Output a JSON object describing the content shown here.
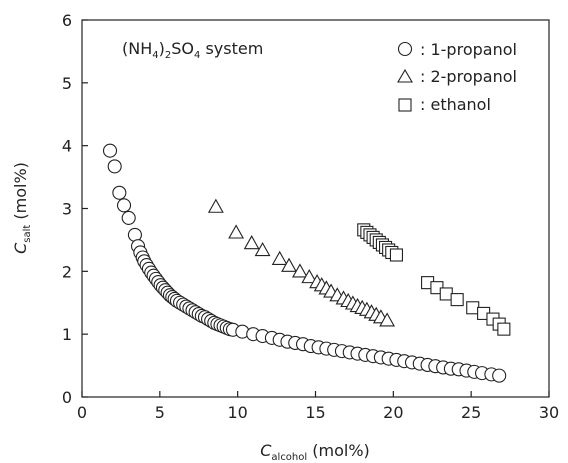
{
  "chart_data": {
    "type": "scatter",
    "annotation": {
      "main": "(NH",
      "sub1": "4",
      "mid": ")",
      "sub2": "2",
      "mid2": "SO",
      "sub3": "4",
      "end": " system"
    },
    "xlabel": {
      "main": "C",
      "sub": "alcohol",
      "unit": " (mol%)"
    },
    "ylabel": {
      "main": "C",
      "sub": "salt",
      "unit": " (mol%)"
    },
    "xlim": [
      0,
      30
    ],
    "ylim": [
      0,
      6
    ],
    "xticks": [
      "0",
      "5",
      "10",
      "15",
      "20",
      "25",
      "30"
    ],
    "yticks": [
      "0",
      "1",
      "2",
      "3",
      "4",
      "5",
      "6"
    ],
    "legend_position": "top-right",
    "series": [
      {
        "name": ": 1-propanol",
        "marker": "circle",
        "points": [
          [
            1.8,
            3.92
          ],
          [
            2.1,
            3.67
          ],
          [
            2.4,
            3.25
          ],
          [
            2.7,
            3.05
          ],
          [
            3.0,
            2.85
          ],
          [
            3.4,
            2.58
          ],
          [
            3.6,
            2.4
          ],
          [
            3.75,
            2.3
          ],
          [
            3.9,
            2.22
          ],
          [
            4.0,
            2.16
          ],
          [
            4.15,
            2.1
          ],
          [
            4.3,
            2.04
          ],
          [
            4.45,
            1.98
          ],
          [
            4.6,
            1.93
          ],
          [
            4.75,
            1.88
          ],
          [
            4.9,
            1.83
          ],
          [
            5.05,
            1.78
          ],
          [
            5.2,
            1.74
          ],
          [
            5.35,
            1.7
          ],
          [
            5.5,
            1.66
          ],
          [
            5.65,
            1.62
          ],
          [
            5.8,
            1.59
          ],
          [
            5.95,
            1.56
          ],
          [
            6.1,
            1.53
          ],
          [
            6.3,
            1.5
          ],
          [
            6.5,
            1.47
          ],
          [
            6.7,
            1.44
          ],
          [
            6.9,
            1.41
          ],
          [
            7.1,
            1.38
          ],
          [
            7.3,
            1.35
          ],
          [
            7.5,
            1.32
          ],
          [
            7.7,
            1.29
          ],
          [
            7.9,
            1.27
          ],
          [
            8.1,
            1.24
          ],
          [
            8.3,
            1.21
          ],
          [
            8.5,
            1.18
          ],
          [
            8.7,
            1.16
          ],
          [
            8.9,
            1.14
          ],
          [
            9.1,
            1.12
          ],
          [
            9.3,
            1.1
          ],
          [
            9.5,
            1.08
          ],
          [
            9.7,
            1.07
          ],
          [
            10.3,
            1.04
          ],
          [
            11.0,
            1.0
          ],
          [
            11.6,
            0.97
          ],
          [
            12.2,
            0.94
          ],
          [
            12.7,
            0.91
          ],
          [
            13.2,
            0.88
          ],
          [
            13.7,
            0.86
          ],
          [
            14.2,
            0.84
          ],
          [
            14.7,
            0.81
          ],
          [
            15.2,
            0.79
          ],
          [
            15.7,
            0.77
          ],
          [
            16.2,
            0.75
          ],
          [
            16.7,
            0.73
          ],
          [
            17.2,
            0.71
          ],
          [
            17.7,
            0.69
          ],
          [
            18.2,
            0.67
          ],
          [
            18.7,
            0.65
          ],
          [
            19.2,
            0.63
          ],
          [
            19.7,
            0.61
          ],
          [
            20.2,
            0.59
          ],
          [
            20.7,
            0.57
          ],
          [
            21.2,
            0.55
          ],
          [
            21.7,
            0.53
          ],
          [
            22.2,
            0.51
          ],
          [
            22.7,
            0.49
          ],
          [
            23.2,
            0.47
          ],
          [
            23.7,
            0.45
          ],
          [
            24.2,
            0.44
          ],
          [
            24.7,
            0.42
          ],
          [
            25.2,
            0.4
          ],
          [
            25.7,
            0.38
          ],
          [
            26.3,
            0.36
          ],
          [
            26.8,
            0.34
          ]
        ]
      },
      {
        "name": ": 2-propanol",
        "marker": "triangle",
        "points": [
          [
            8.6,
            3.02
          ],
          [
            9.9,
            2.61
          ],
          [
            10.9,
            2.44
          ],
          [
            11.6,
            2.33
          ],
          [
            12.7,
            2.19
          ],
          [
            13.3,
            2.08
          ],
          [
            14.0,
            1.99
          ],
          [
            14.6,
            1.9
          ],
          [
            15.1,
            1.82
          ],
          [
            15.4,
            1.77
          ],
          [
            15.7,
            1.72
          ],
          [
            16.0,
            1.67
          ],
          [
            16.4,
            1.61
          ],
          [
            16.8,
            1.56
          ],
          [
            17.1,
            1.52
          ],
          [
            17.4,
            1.48
          ],
          [
            17.7,
            1.44
          ],
          [
            18.0,
            1.41
          ],
          [
            18.3,
            1.38
          ],
          [
            18.6,
            1.34
          ],
          [
            18.9,
            1.3
          ],
          [
            19.2,
            1.26
          ],
          [
            19.6,
            1.21
          ]
        ]
      },
      {
        "name": ": ethanol",
        "marker": "square",
        "points": [
          [
            18.1,
            2.66
          ],
          [
            18.3,
            2.62
          ],
          [
            18.5,
            2.58
          ],
          [
            18.7,
            2.54
          ],
          [
            18.9,
            2.5
          ],
          [
            19.1,
            2.46
          ],
          [
            19.3,
            2.42
          ],
          [
            19.5,
            2.38
          ],
          [
            19.7,
            2.34
          ],
          [
            19.9,
            2.3
          ],
          [
            20.2,
            2.26
          ],
          [
            22.2,
            1.82
          ],
          [
            22.8,
            1.74
          ],
          [
            23.4,
            1.64
          ],
          [
            24.1,
            1.55
          ],
          [
            25.1,
            1.42
          ],
          [
            25.8,
            1.33
          ],
          [
            26.4,
            1.24
          ],
          [
            26.8,
            1.16
          ],
          [
            27.1,
            1.08
          ]
        ]
      }
    ]
  }
}
